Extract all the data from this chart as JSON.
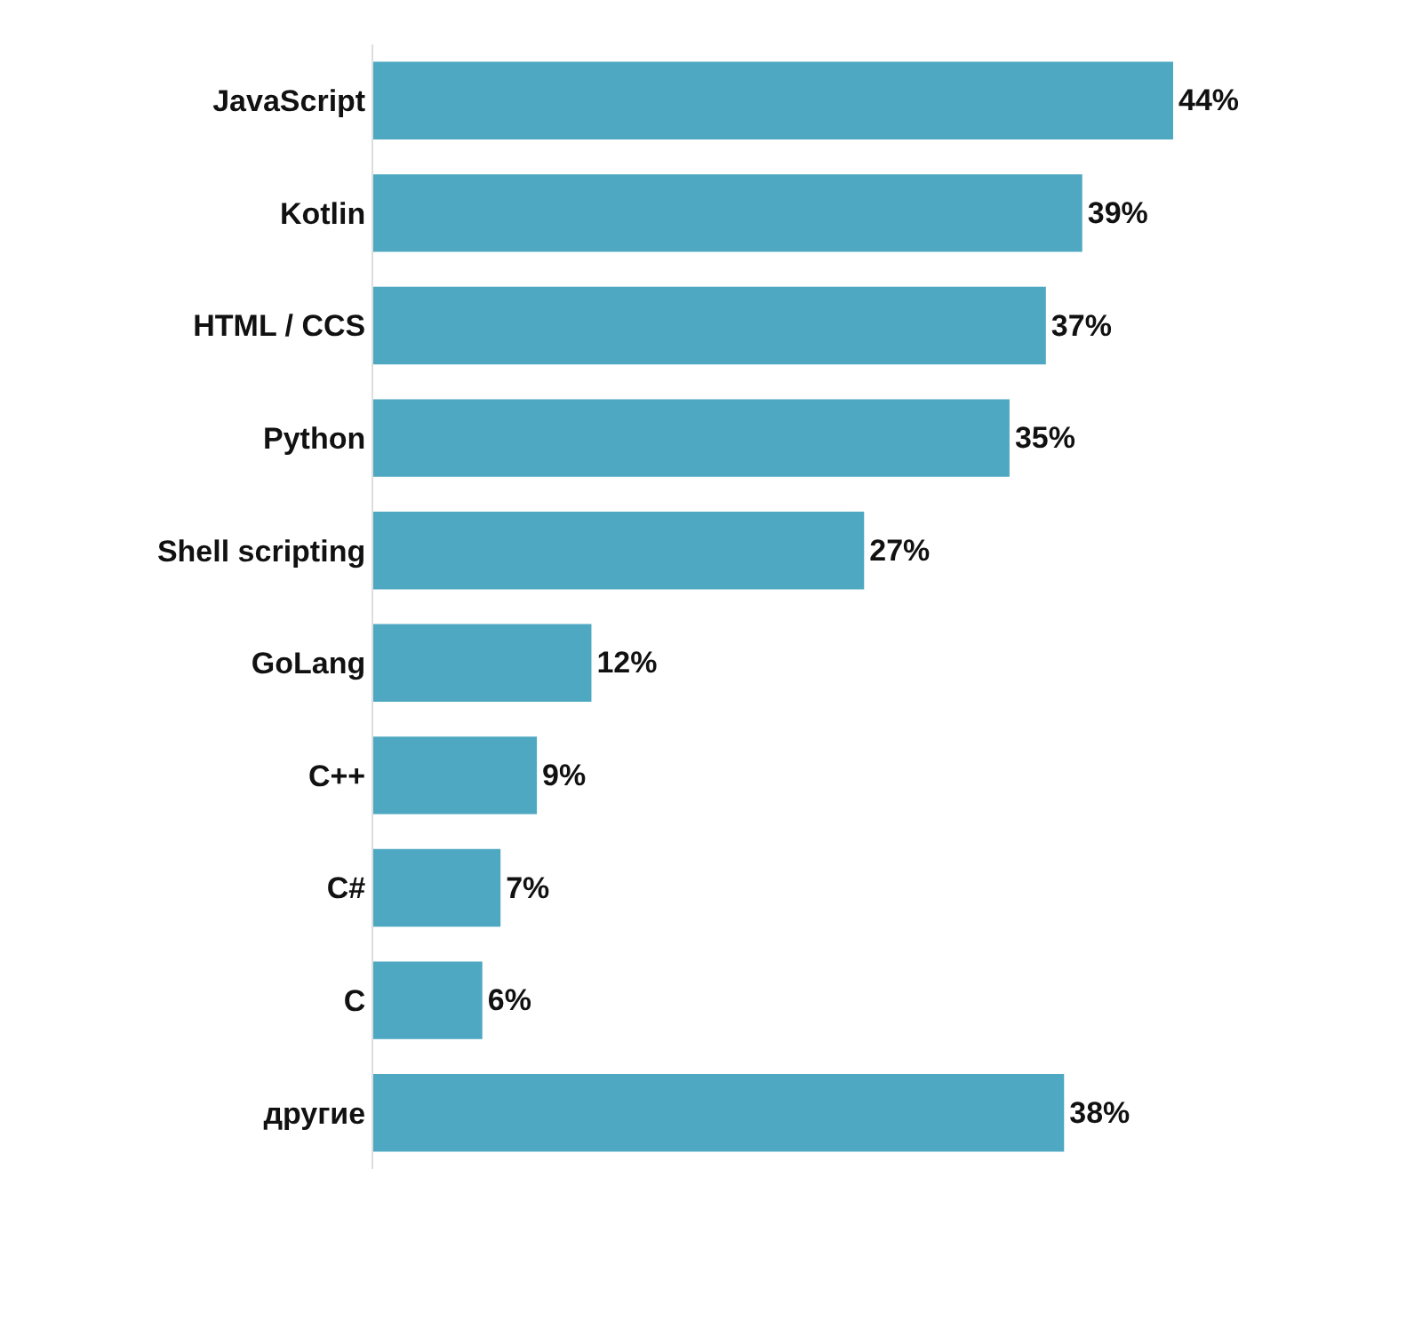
{
  "chart_data": {
    "type": "bar",
    "orientation": "horizontal",
    "categories": [
      "JavaScript",
      "Kotlin",
      "HTML / CCS",
      "Python",
      "Shell scripting",
      "GoLang",
      "C++",
      "C#",
      "C",
      "другие"
    ],
    "values": [
      44,
      39,
      37,
      35,
      27,
      12,
      9,
      7,
      6,
      38
    ],
    "value_labels": [
      "44%",
      "39%",
      "37%",
      "35%",
      "27%",
      "12%",
      "9%",
      "7%",
      "6%",
      "38%"
    ],
    "color": "#4ea8c2",
    "grid": false,
    "legend": false
  }
}
